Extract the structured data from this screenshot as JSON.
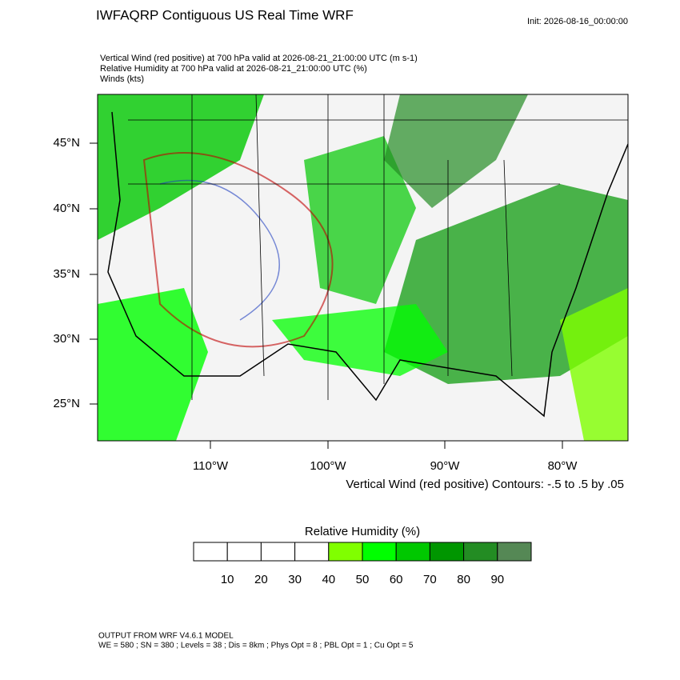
{
  "header": {
    "title": "IWFAQRP Contiguous US Real Time WRF",
    "init": "Init: 2026-08-16_00:00:00",
    "fields": [
      "Vertical Wind (red positive) at 700 hPa valid at 2026-08-21_21:00:00 UTC   (m s-1)",
      "Relative Humidity at 700 hPa valid at 2026-08-21_21:00:00 UTC   (%)",
      "Winds   (kts)"
    ]
  },
  "map": {
    "lat_labels": [
      "45°N",
      "40°N",
      "35°N",
      "30°N",
      "25°N"
    ],
    "lon_labels": [
      "110°W",
      "100°W",
      "90°W",
      "80°W"
    ],
    "contour_note": "Vertical Wind (red positive) Contours: -.5 to .5 by .05"
  },
  "colorbar": {
    "title": "Relative Humidity  (%)",
    "colors": [
      "#ffffff",
      "#ffffff",
      "#ffffff",
      "#ffffff",
      "#80ff00",
      "#00ff00",
      "#00c800",
      "#009600",
      "#238c23",
      "#558855"
    ],
    "ticks": [
      10,
      20,
      30,
      40,
      50,
      60,
      70,
      80,
      90
    ]
  },
  "footer": [
    "OUTPUT FROM WRF V4.6.1 MODEL",
    "WE = 580 ; SN = 380 ; Levels = 38 ; Dis = 8km ; Phys Opt = 8 ; PBL Opt = 1 ; Cu Opt = 5"
  ]
}
